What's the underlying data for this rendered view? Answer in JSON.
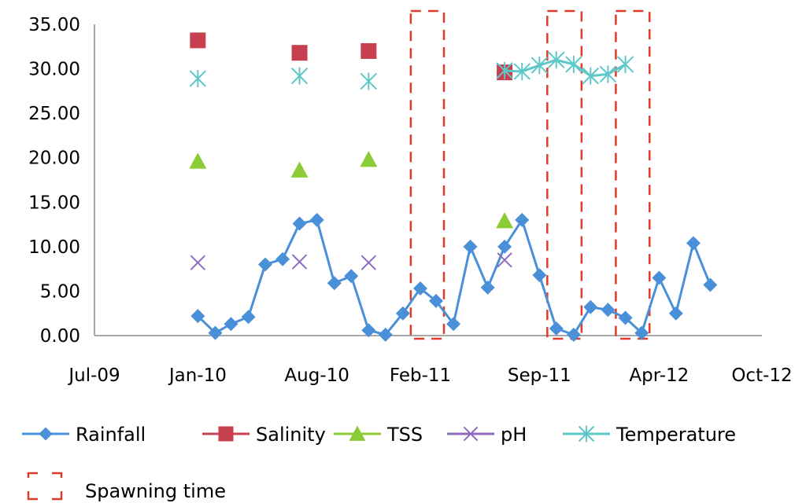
{
  "chart_data": {
    "type": "line",
    "title": "",
    "xlabel": "",
    "ylabel": "",
    "x_axis": {
      "type": "date",
      "ticks": [
        "2009-07-01",
        "2010-01-01",
        "2010-08-01",
        "2011-02-01",
        "2011-09-01",
        "2012-04-01",
        "2012-10-01"
      ],
      "tick_labels": [
        "Jul-09",
        "Jan-10",
        "Aug-10",
        "Feb-11",
        "Sep-11",
        "Apr-12",
        "Oct-12"
      ],
      "range": [
        "2009-07-01",
        "2012-10-01"
      ]
    },
    "y_axis": {
      "range": [
        0,
        35
      ],
      "ticks": [
        0,
        5,
        10,
        15,
        20,
        25,
        30,
        35
      ],
      "tick_labels": [
        "0.00",
        "5.00",
        "10.00",
        "15.00",
        "20.00",
        "25.00",
        "30.00",
        "35.00"
      ]
    },
    "grid": false,
    "legend_position": "bottom",
    "series": [
      {
        "name": "Rainfall",
        "marker": "diamond",
        "connected": true,
        "color": "#4a90d9",
        "points": [
          {
            "x": "2010-01-01",
            "y": 2.2
          },
          {
            "x": "2010-02-01",
            "y": 0.3
          },
          {
            "x": "2010-03-01",
            "y": 1.3
          },
          {
            "x": "2010-04-01",
            "y": 2.1
          },
          {
            "x": "2010-05-01",
            "y": 8.0
          },
          {
            "x": "2010-06-01",
            "y": 8.6
          },
          {
            "x": "2010-07-01",
            "y": 12.6
          },
          {
            "x": "2010-08-01",
            "y": 13.0
          },
          {
            "x": "2010-09-01",
            "y": 5.9
          },
          {
            "x": "2010-10-01",
            "y": 6.7
          },
          {
            "x": "2010-11-01",
            "y": 0.6
          },
          {
            "x": "2010-12-01",
            "y": 0.1
          },
          {
            "x": "2011-01-01",
            "y": 2.5
          },
          {
            "x": "2011-02-01",
            "y": 5.3
          },
          {
            "x": "2011-03-01",
            "y": 3.9
          },
          {
            "x": "2011-04-01",
            "y": 1.3
          },
          {
            "x": "2011-05-01",
            "y": 10.0
          },
          {
            "x": "2011-06-01",
            "y": 5.4
          },
          {
            "x": "2011-07-01",
            "y": 10.0
          },
          {
            "x": "2011-08-01",
            "y": 13.0
          },
          {
            "x": "2011-09-01",
            "y": 6.8
          },
          {
            "x": "2011-10-01",
            "y": 0.8
          },
          {
            "x": "2011-11-01",
            "y": 0.1
          },
          {
            "x": "2011-12-01",
            "y": 3.2
          },
          {
            "x": "2012-01-01",
            "y": 2.9
          },
          {
            "x": "2012-02-01",
            "y": 2.0
          },
          {
            "x": "2012-03-01",
            "y": 0.3
          },
          {
            "x": "2012-04-01",
            "y": 6.5
          },
          {
            "x": "2012-05-01",
            "y": 2.5
          },
          {
            "x": "2012-06-01",
            "y": 10.4
          },
          {
            "x": "2012-07-01",
            "y": 5.7
          }
        ]
      },
      {
        "name": "Salinity",
        "marker": "square",
        "connected": false,
        "color": "#c8404f",
        "points": [
          {
            "x": "2010-01-01",
            "y": 33.2
          },
          {
            "x": "2010-07-01",
            "y": 31.8
          },
          {
            "x": "2010-11-01",
            "y": 32.0
          },
          {
            "x": "2011-07-01",
            "y": 29.6
          }
        ]
      },
      {
        "name": "TSS",
        "marker": "triangle",
        "connected": false,
        "color": "#8ccc36",
        "points": [
          {
            "x": "2010-01-01",
            "y": 19.6
          },
          {
            "x": "2010-07-01",
            "y": 18.6
          },
          {
            "x": "2010-11-01",
            "y": 19.8
          },
          {
            "x": "2011-07-01",
            "y": 12.9
          }
        ]
      },
      {
        "name": "pH",
        "marker": "x",
        "connected": false,
        "color": "#8d6cbd",
        "points": [
          {
            "x": "2010-01-01",
            "y": 8.2
          },
          {
            "x": "2010-07-01",
            "y": 8.3
          },
          {
            "x": "2010-11-01",
            "y": 8.2
          },
          {
            "x": "2011-07-01",
            "y": 8.5
          }
        ]
      },
      {
        "name": "Temperature",
        "marker": "asterisk",
        "connected_from_index": 3,
        "color": "#5ec8c8",
        "points": [
          {
            "x": "2010-01-01",
            "y": 28.9
          },
          {
            "x": "2010-07-01",
            "y": 29.2
          },
          {
            "x": "2010-11-01",
            "y": 28.6
          },
          {
            "x": "2011-07-01",
            "y": 29.8
          },
          {
            "x": "2011-08-01",
            "y": 29.7
          },
          {
            "x": "2011-09-01",
            "y": 30.4
          },
          {
            "x": "2011-10-01",
            "y": 31.0
          },
          {
            "x": "2011-11-01",
            "y": 30.5
          },
          {
            "x": "2011-12-01",
            "y": 29.2
          },
          {
            "x": "2012-01-01",
            "y": 29.4
          },
          {
            "x": "2012-02-01",
            "y": 30.5
          }
        ]
      }
    ],
    "spawning_periods": [
      {
        "start": "2011-01-15",
        "end": "2011-03-15"
      },
      {
        "start": "2011-09-15",
        "end": "2011-11-15"
      },
      {
        "start": "2012-01-15",
        "end": "2012-03-15"
      }
    ],
    "spawning_color": "#e03a2a",
    "legend": {
      "spawning_label": "Spawning time"
    }
  }
}
